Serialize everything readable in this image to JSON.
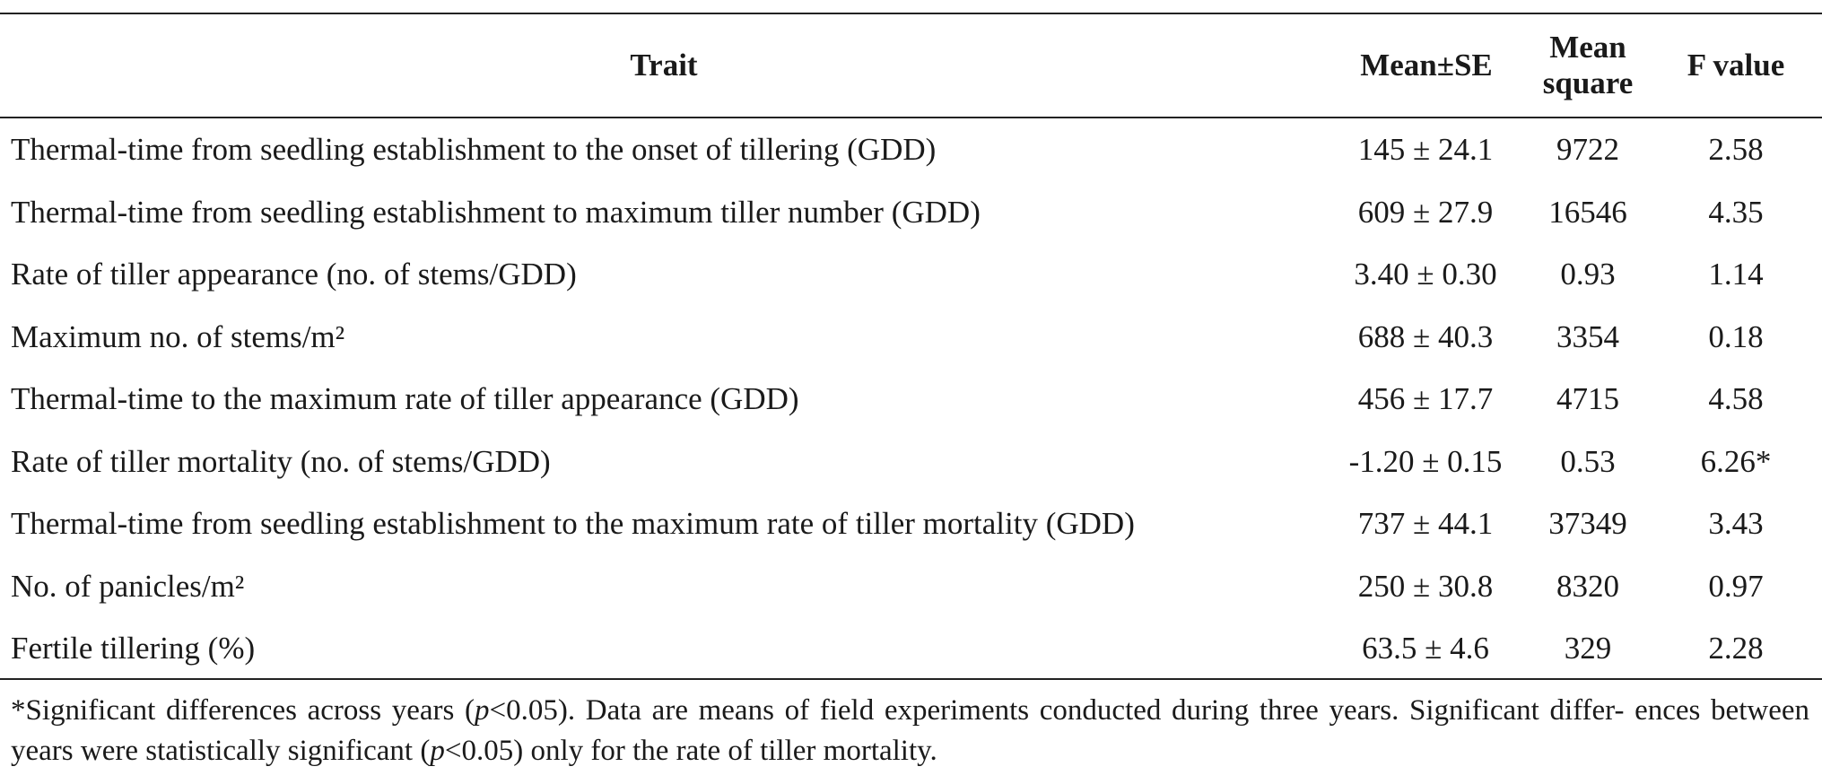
{
  "table": {
    "headers": {
      "trait": "Trait",
      "mean_se": "Mean±SE",
      "mean_square_line1": "Mean",
      "mean_square_line2": "square",
      "f_value": "F value"
    },
    "rows": [
      {
        "trait": "Thermal-time from seedling establishment to the onset of tillering (GDD)",
        "mean_se": "145 ± 24.1",
        "mean_square": "9722",
        "f_value": "2.58"
      },
      {
        "trait": "Thermal-time from seedling establishment to maximum tiller number (GDD)",
        "mean_se": "609 ± 27.9",
        "mean_square": "16546",
        "f_value": "4.35"
      },
      {
        "trait": "Rate of tiller appearance (no. of stems/GDD)",
        "mean_se": "3.40 ± 0.30",
        "mean_square": "0.93",
        "f_value": "1.14"
      },
      {
        "trait": "Maximum no. of stems/m²",
        "mean_se": "688 ± 40.3",
        "mean_square": "3354",
        "f_value": "0.18"
      },
      {
        "trait": "Thermal-time to the maximum rate of tiller appearance (GDD)",
        "mean_se": "456 ± 17.7",
        "mean_square": "4715",
        "f_value": "4.58"
      },
      {
        "trait": "Rate of tiller mortality (no. of stems/GDD)",
        "mean_se": "-1.20 ± 0.15",
        "mean_square": "0.53",
        "f_value": "6.26*"
      },
      {
        "trait": "Thermal-time from seedling establishment to the maximum rate of tiller mortality (GDD)",
        "mean_se": "737 ± 44.1",
        "mean_square": "37349",
        "f_value": "3.43"
      },
      {
        "trait": "No. of panicles/m²",
        "mean_se": "250 ± 30.8",
        "mean_square": "8320",
        "f_value": "0.97"
      },
      {
        "trait": "Fertile tillering (%)",
        "mean_se": "63.5 ± 4.6",
        "mean_square": "329",
        "f_value": "2.28"
      }
    ]
  },
  "footnote": {
    "part1": "*Significant differences across years (",
    "p1": "p",
    "part2": "<0.05). Data are means of field experiments conducted during three years. Significant differ- ences between years were statistically significant (",
    "p2": "p",
    "part3": "<0.05) only for the rate of tiller mortality."
  }
}
